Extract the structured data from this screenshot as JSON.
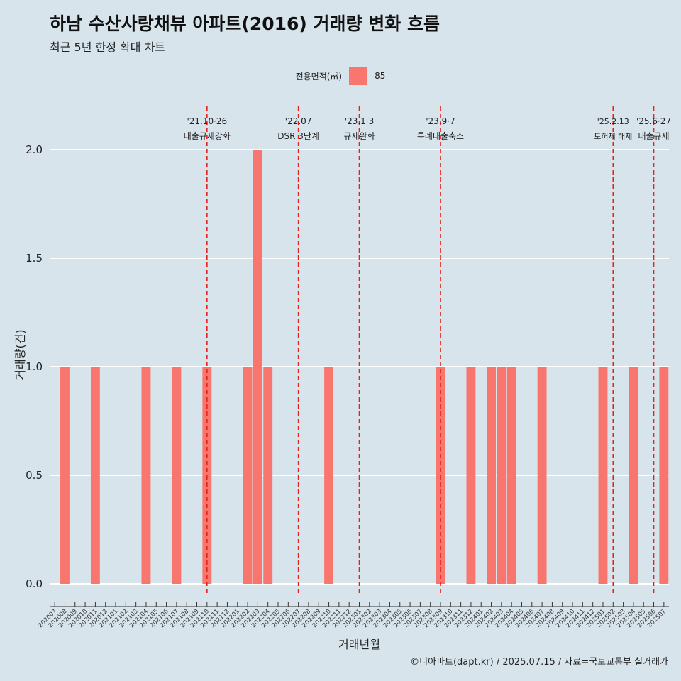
{
  "title": "하남 수산사랑채뷰 아파트(2016) 거래량 변화 흐름",
  "subtitle": "최근 5년 한정 확대 차트",
  "legend": {
    "title": "전용면적(㎡)",
    "items": [
      {
        "label": "85",
        "color": "#f8766d"
      }
    ]
  },
  "caption": "©디아파트(dapt.kr) / 2025.07.15 / 자료=국토교통부 실거래가",
  "chart_data": {
    "type": "bar",
    "xlabel": "거래년월",
    "ylabel": "거래량(건)",
    "ylim": [
      0,
      2
    ],
    "yticks": [
      "0.0",
      "0.5",
      "1.0",
      "1.5",
      "2.0"
    ],
    "grid": true,
    "bar_color": "#f8766d",
    "categories": [
      "202007",
      "202008",
      "202009",
      "202010",
      "202011",
      "202012",
      "202101",
      "202102",
      "202103",
      "202104",
      "202105",
      "202106",
      "202107",
      "202108",
      "202109",
      "202110",
      "202111",
      "202112",
      "202201",
      "202202",
      "202203",
      "202204",
      "202205",
      "202206",
      "202207",
      "202208",
      "202209",
      "202210",
      "202211",
      "202212",
      "202301",
      "202302",
      "202303",
      "202304",
      "202305",
      "202306",
      "202307",
      "202308",
      "202309",
      "202310",
      "202311",
      "202312",
      "202401",
      "202402",
      "202403",
      "202404",
      "202405",
      "202406",
      "202407",
      "202408",
      "202409",
      "202410",
      "202411",
      "202412",
      "202501",
      "202502",
      "202503",
      "202504",
      "202505",
      "202506",
      "202507"
    ],
    "values": [
      0,
      1,
      0,
      0,
      1,
      0,
      0,
      0,
      0,
      1,
      0,
      0,
      1,
      0,
      0,
      1,
      0,
      0,
      0,
      1,
      2,
      1,
      0,
      0,
      0,
      0,
      0,
      1,
      0,
      0,
      0,
      0,
      0,
      0,
      0,
      0,
      0,
      0,
      1,
      0,
      0,
      1,
      0,
      1,
      1,
      1,
      0,
      0,
      1,
      0,
      0,
      0,
      0,
      0,
      1,
      0,
      0,
      1,
      0,
      0,
      1
    ],
    "annotations": [
      {
        "x": "202110",
        "date": "'21.10·26",
        "label": "대출규제강화"
      },
      {
        "x": "202207",
        "date": "'22.07",
        "label": "DSR 3단계"
      },
      {
        "x": "202301",
        "date": "'23.1·3",
        "label": "규제완화"
      },
      {
        "x": "202309",
        "date": "'23.9·7",
        "label": "특례대출축소"
      },
      {
        "x": "202502",
        "date": "'25.2.13",
        "label": "토허제 해제"
      },
      {
        "x": "202506",
        "date": "'25.6·27",
        "label": "대출규제"
      }
    ],
    "annotation_color": "#e8201a"
  }
}
